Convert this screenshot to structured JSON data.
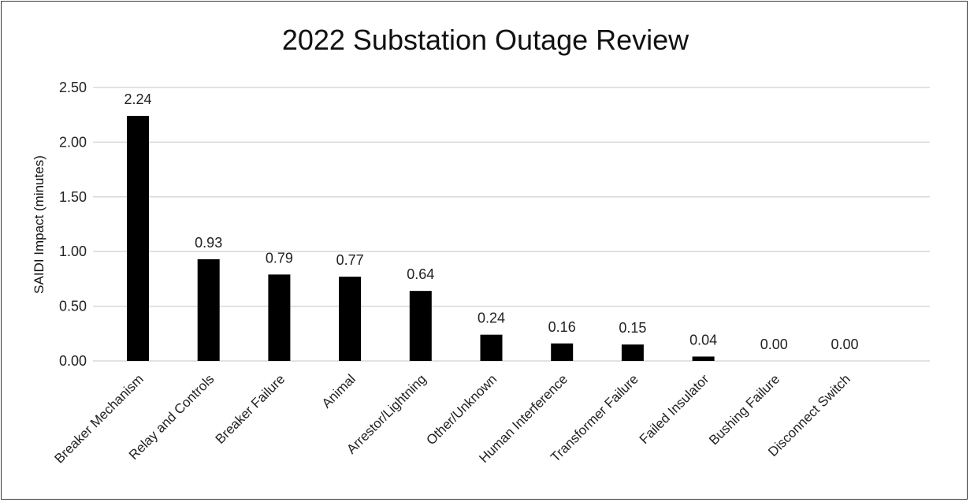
{
  "chart_data": {
    "type": "bar",
    "title": "2022 Substation Outage Review",
    "ylabel": "SAIDI Impact  (minutes)",
    "xlabel": "",
    "categories": [
      "Breaker Mechanism",
      "Relay and Controls",
      "Breaker Failure",
      "Animal",
      "Arrestor/Lightning",
      "Other/Unknown",
      "Human Interference",
      "Transformer Failure",
      "Failed Insulator",
      "Bushing Failure",
      "Disconnect Switch"
    ],
    "values": [
      2.24,
      0.93,
      0.79,
      0.77,
      0.64,
      0.24,
      0.16,
      0.15,
      0.04,
      0.0,
      0.0
    ],
    "data_labels": [
      "2.24",
      "0.93",
      "0.79",
      "0.77",
      "0.64",
      "0.24",
      "0.16",
      "0.15",
      "0.04",
      "0.00",
      "0.00"
    ],
    "yticks": [
      "0.00",
      "0.50",
      "1.00",
      "1.50",
      "2.00",
      "2.50"
    ],
    "ytick_values": [
      0,
      0.5,
      1.0,
      1.5,
      2.0,
      2.5
    ],
    "ylim": [
      0,
      2.5
    ],
    "grid": true,
    "legend": "none",
    "bar_color": "#000000",
    "grid_color": "#d9d9d9"
  }
}
